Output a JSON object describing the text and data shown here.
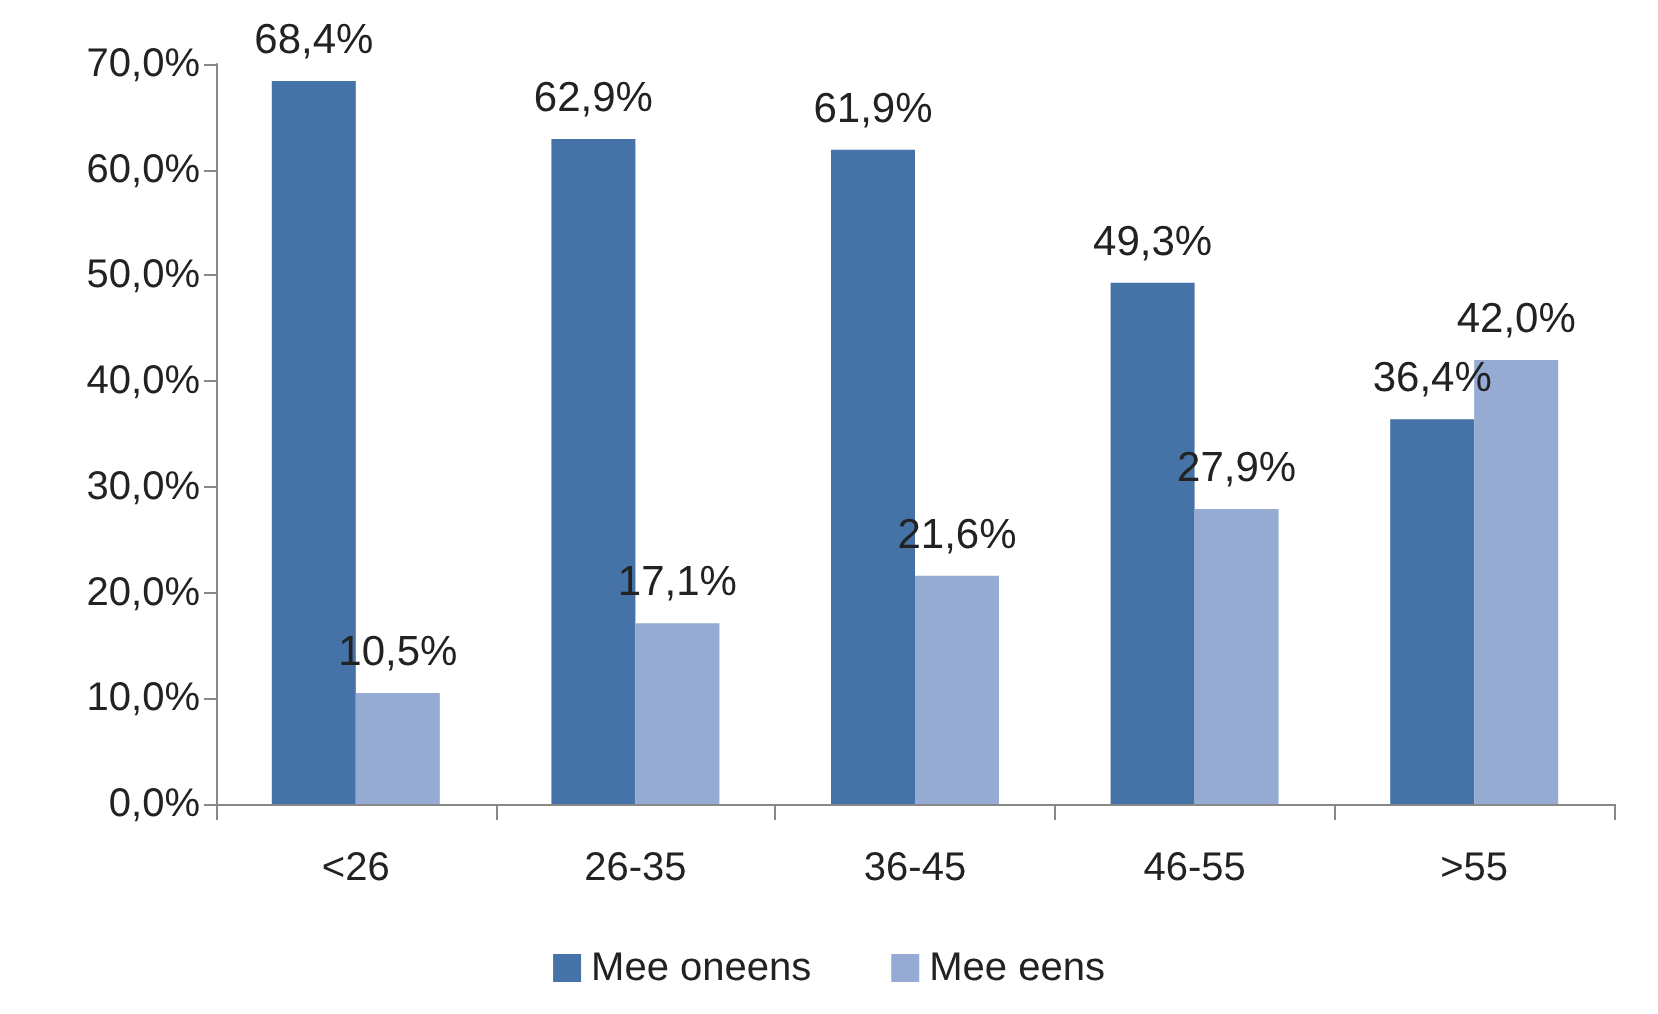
{
  "chart_data": {
    "type": "bar",
    "categories": [
      "<26",
      "26-35",
      "36-45",
      "46-55",
      ">55"
    ],
    "series": [
      {
        "name": "Mee oneens",
        "color": "#4573a7",
        "values": [
          68.4,
          62.9,
          61.9,
          49.3,
          36.4
        ],
        "value_labels": [
          "68,4%",
          "62,9%",
          "61,9%",
          "49,3%",
          "36,4%"
        ]
      },
      {
        "name": "Mee eens",
        "color": "#95abd3",
        "values": [
          10.5,
          17.1,
          21.6,
          27.9,
          42.0
        ],
        "value_labels": [
          "10,5%",
          "17,1%",
          "21,6%",
          "27,9%",
          "42,0%"
        ]
      }
    ],
    "ylim": [
      0,
      70
    ],
    "yticks": [
      {
        "value": 0,
        "label": "0,0%"
      },
      {
        "value": 10,
        "label": "10,0%"
      },
      {
        "value": 20,
        "label": "20,0%"
      },
      {
        "value": 30,
        "label": "30,0%"
      },
      {
        "value": 40,
        "label": "40,0%"
      },
      {
        "value": 50,
        "label": "50,0%"
      },
      {
        "value": 60,
        "label": "60,0%"
      },
      {
        "value": 70,
        "label": "70,0%"
      }
    ],
    "grid": false,
    "legend": "bottom"
  }
}
